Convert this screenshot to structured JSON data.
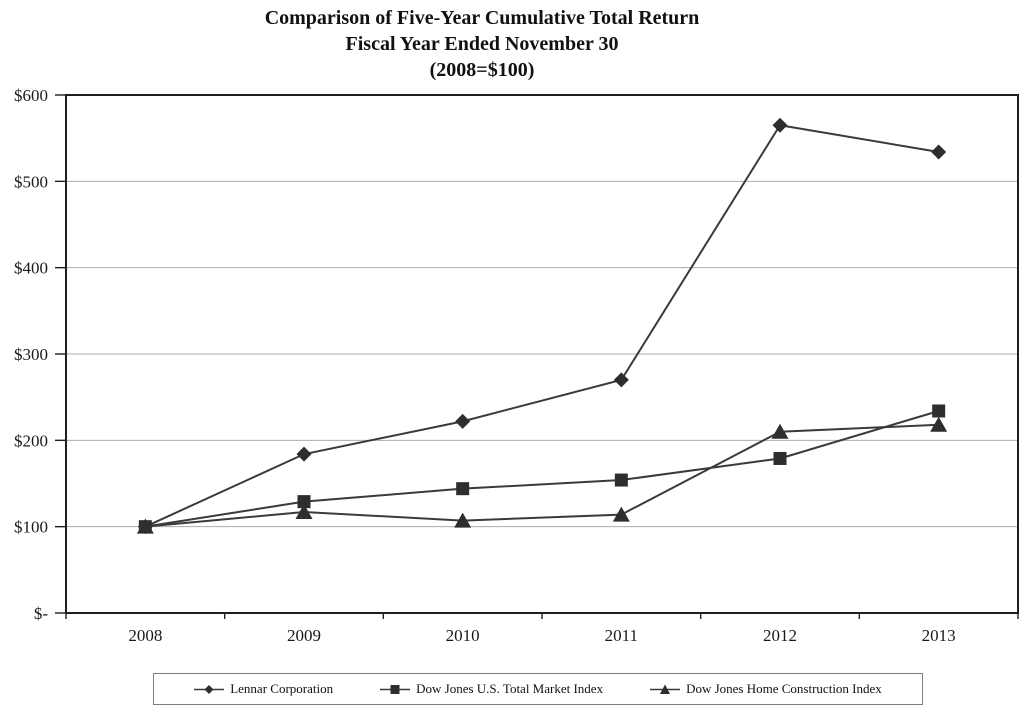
{
  "title": {
    "line1": "Comparison of Five-Year Cumulative Total Return",
    "line2": "Fiscal Year Ended November 30",
    "line3": "(2008=$100)"
  },
  "chart_data": {
    "type": "line",
    "categories": [
      "2008",
      "2009",
      "2010",
      "2011",
      "2012",
      "2013"
    ],
    "series": [
      {
        "name": "Lennar Corporation",
        "marker": "diamond",
        "values": [
          100,
          184,
          222,
          270,
          565,
          534
        ]
      },
      {
        "name": "Dow Jones U.S. Total Market Index",
        "marker": "square",
        "values": [
          100,
          129,
          144,
          154,
          179,
          234
        ]
      },
      {
        "name": "Dow Jones Home Construction Index",
        "marker": "triangle",
        "values": [
          100,
          117,
          107,
          114,
          210,
          218
        ]
      }
    ],
    "title": "Comparison of Five-Year Cumulative Total Return Fiscal Year Ended November 30 (2008=$100)",
    "xlabel": "",
    "ylabel": "",
    "y_axis": {
      "min": 0,
      "max": 600,
      "tick_interval": 100,
      "tick_labels": [
        "$-",
        "$100",
        "$200",
        "$300",
        "$400",
        "$500",
        "$600"
      ]
    },
    "grid": true,
    "legend_position": "bottom",
    "colors": {
      "line": "#3a3a3a",
      "marker": "#2e2e2e",
      "grid": "#adadad",
      "axis": "#1f1f1f",
      "text": "#1a1a1a"
    }
  }
}
